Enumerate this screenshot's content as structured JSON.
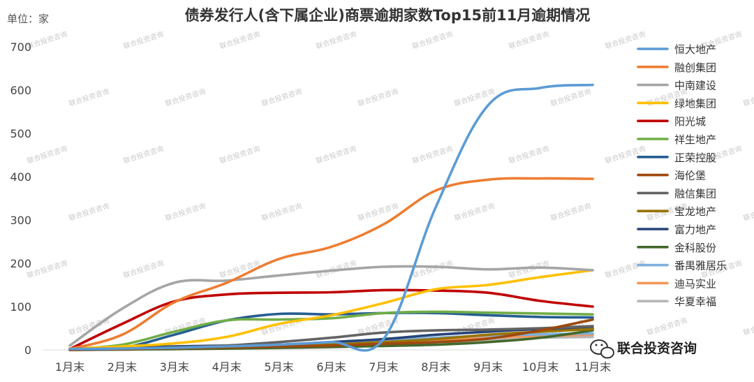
{
  "chart_data": {
    "type": "line",
    "title": "债券发行人(含下属企业)商票逾期家数Top15前11月逾期情况",
    "unit_label": "单位：家",
    "categories": [
      "1月末",
      "2月末",
      "3月末",
      "4月末",
      "5月末",
      "6月末",
      "7月末",
      "8月末",
      "9月末",
      "10月末",
      "11月末"
    ],
    "ylim": [
      0,
      700
    ],
    "yticks": [
      0,
      100,
      200,
      300,
      400,
      500,
      600,
      700
    ],
    "grid": false,
    "legend_position": "right",
    "series": [
      {
        "name": "恒大地产",
        "color": "#5B9BD5",
        "values": [
          2,
          3,
          5,
          8,
          12,
          18,
          25,
          330,
          565,
          605,
          612
        ]
      },
      {
        "name": "融创集团",
        "color": "#ED7D31",
        "values": [
          2,
          35,
          110,
          155,
          210,
          238,
          290,
          368,
          393,
          396,
          395
        ]
      },
      {
        "name": "中南建设",
        "color": "#A5A5A5",
        "values": [
          10,
          95,
          155,
          160,
          172,
          183,
          192,
          192,
          186,
          190,
          184
        ]
      },
      {
        "name": "绿地集团",
        "color": "#FFC000",
        "values": [
          3,
          8,
          15,
          30,
          60,
          80,
          108,
          140,
          150,
          168,
          184
        ]
      },
      {
        "name": "阳光城",
        "color": "#C00000",
        "values": [
          2,
          60,
          112,
          128,
          132,
          133,
          138,
          137,
          132,
          113,
          100
        ]
      },
      {
        "name": "祥生地产",
        "color": "#70AD47",
        "values": [
          2,
          12,
          42,
          68,
          70,
          73,
          85,
          88,
          86,
          84,
          82
        ]
      },
      {
        "name": "正荣控股",
        "color": "#255E91",
        "values": [
          2,
          5,
          35,
          68,
          83,
          82,
          85,
          85,
          80,
          76,
          75
        ]
      },
      {
        "name": "海伦堡",
        "color": "#9E480E",
        "values": [
          0,
          2,
          4,
          6,
          8,
          10,
          14,
          18,
          26,
          45,
          70
        ]
      },
      {
        "name": "融信集团",
        "color": "#636363",
        "values": [
          0,
          3,
          6,
          10,
          18,
          28,
          40,
          45,
          47,
          50,
          55
        ]
      },
      {
        "name": "宝龙地产",
        "color": "#997300",
        "values": [
          0,
          2,
          4,
          6,
          8,
          12,
          18,
          25,
          35,
          42,
          48
        ]
      },
      {
        "name": "富力地产",
        "color": "#264478",
        "values": [
          0,
          5,
          8,
          10,
          12,
          18,
          25,
          35,
          42,
          48,
          50
        ]
      },
      {
        "name": "金科股份",
        "color": "#43682B",
        "values": [
          0,
          1,
          2,
          3,
          5,
          7,
          9,
          12,
          18,
          28,
          45
        ]
      },
      {
        "name": "番禺雅居乐",
        "color": "#7CAFDD",
        "values": [
          0,
          1,
          2,
          4,
          6,
          12,
          20,
          28,
          33,
          36,
          38
        ]
      },
      {
        "name": "迪马实业",
        "color": "#F1975A",
        "values": [
          0,
          1,
          2,
          3,
          5,
          8,
          12,
          20,
          28,
          32,
          35
        ]
      },
      {
        "name": "华夏幸福",
        "color": "#B7B7B7",
        "values": [
          0,
          1,
          2,
          3,
          4,
          6,
          10,
          16,
          24,
          28,
          30
        ]
      }
    ]
  },
  "watermark": {
    "text": "联合投资咨询",
    "corner_label": "联合投资咨询",
    "corner_icon": "wechat-icon"
  }
}
